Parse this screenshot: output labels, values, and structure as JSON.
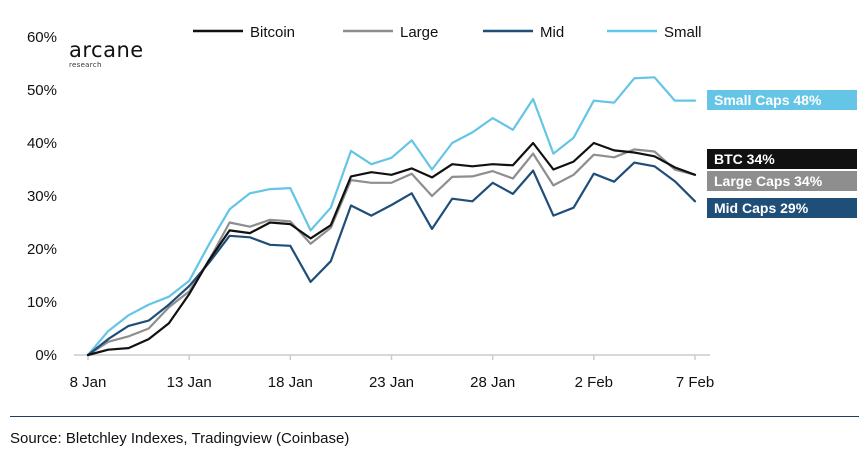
{
  "logo": {
    "name": "arcane",
    "subtitle": "research"
  },
  "source": "Source: Bletchley Indexes, Tradingview (Coinbase)",
  "chart_data": {
    "type": "line",
    "title": "",
    "xlabel": "",
    "ylabel": "",
    "ylim": [
      0,
      60
    ],
    "yticks": [
      "0%",
      "10%",
      "20%",
      "30%",
      "40%",
      "50%",
      "60%"
    ],
    "xtick_labels": [
      "8 Jan",
      "13 Jan",
      "18 Jan",
      "23 Jan",
      "28 Jan",
      "2 Feb",
      "7 Feb"
    ],
    "x": [
      "8 Jan",
      "9 Jan",
      "10 Jan",
      "11 Jan",
      "12 Jan",
      "13 Jan",
      "14 Jan",
      "15 Jan",
      "16 Jan",
      "17 Jan",
      "18 Jan",
      "19 Jan",
      "20 Jan",
      "21 Jan",
      "22 Jan",
      "23 Jan",
      "24 Jan",
      "25 Jan",
      "26 Jan",
      "27 Jan",
      "28 Jan",
      "29 Jan",
      "30 Jan",
      "31 Jan",
      "1 Feb",
      "2 Feb",
      "3 Feb",
      "4 Feb",
      "5 Feb",
      "6 Feb",
      "7 Feb"
    ],
    "grid": false,
    "legend_position": "top",
    "series": [
      {
        "name": "Bitcoin",
        "color": "#111111",
        "values": [
          0,
          1,
          1.3,
          3,
          6,
          11.5,
          18,
          23.5,
          23,
          25,
          24.7,
          22,
          24.5,
          33.7,
          34.5,
          34,
          35.2,
          33.5,
          36,
          35.6,
          36,
          35.8,
          40,
          35,
          36.5,
          40,
          38.6,
          38.2,
          37.5,
          35.4,
          34
        ]
      },
      {
        "name": "Large",
        "color": "#8e8e8e",
        "values": [
          0,
          2.5,
          3.5,
          5,
          9,
          12,
          18,
          25,
          24.2,
          25.5,
          25.2,
          21,
          24,
          33,
          32.5,
          32.5,
          34.2,
          30,
          33.6,
          33.7,
          34.7,
          33.3,
          38,
          32,
          34,
          37.8,
          37.3,
          38.8,
          38.4,
          35,
          34
        ]
      },
      {
        "name": "Mid",
        "color": "#1f4e79",
        "values": [
          0,
          3,
          5.5,
          6.5,
          9.5,
          13,
          17.5,
          22.5,
          22.2,
          20.8,
          20.6,
          13.8,
          17.7,
          28.2,
          26.3,
          28.3,
          30.5,
          23.8,
          29.5,
          29,
          32.5,
          30.4,
          34.8,
          26.3,
          27.8,
          34.2,
          32.7,
          36.3,
          35.6,
          32.8,
          29
        ]
      },
      {
        "name": "Small",
        "color": "#64c5e6",
        "values": [
          0,
          4.5,
          7.5,
          9.5,
          11,
          14,
          21,
          27.5,
          30.5,
          31.3,
          31.5,
          23.5,
          27.8,
          38.5,
          36,
          37.2,
          40.5,
          35,
          40,
          42,
          44.7,
          42.5,
          48.3,
          38,
          41,
          48,
          47.6,
          52.2,
          52.4,
          48,
          48
        ]
      }
    ],
    "end_labels": [
      {
        "text": "Small Caps 48%",
        "color": "#64c5e6"
      },
      {
        "text": "BTC 34%",
        "color": "#111111"
      },
      {
        "text": "Large Caps 34%",
        "color": "#8e8e8e"
      },
      {
        "text": "Mid Caps 29%",
        "color": "#1f4e79"
      }
    ]
  }
}
